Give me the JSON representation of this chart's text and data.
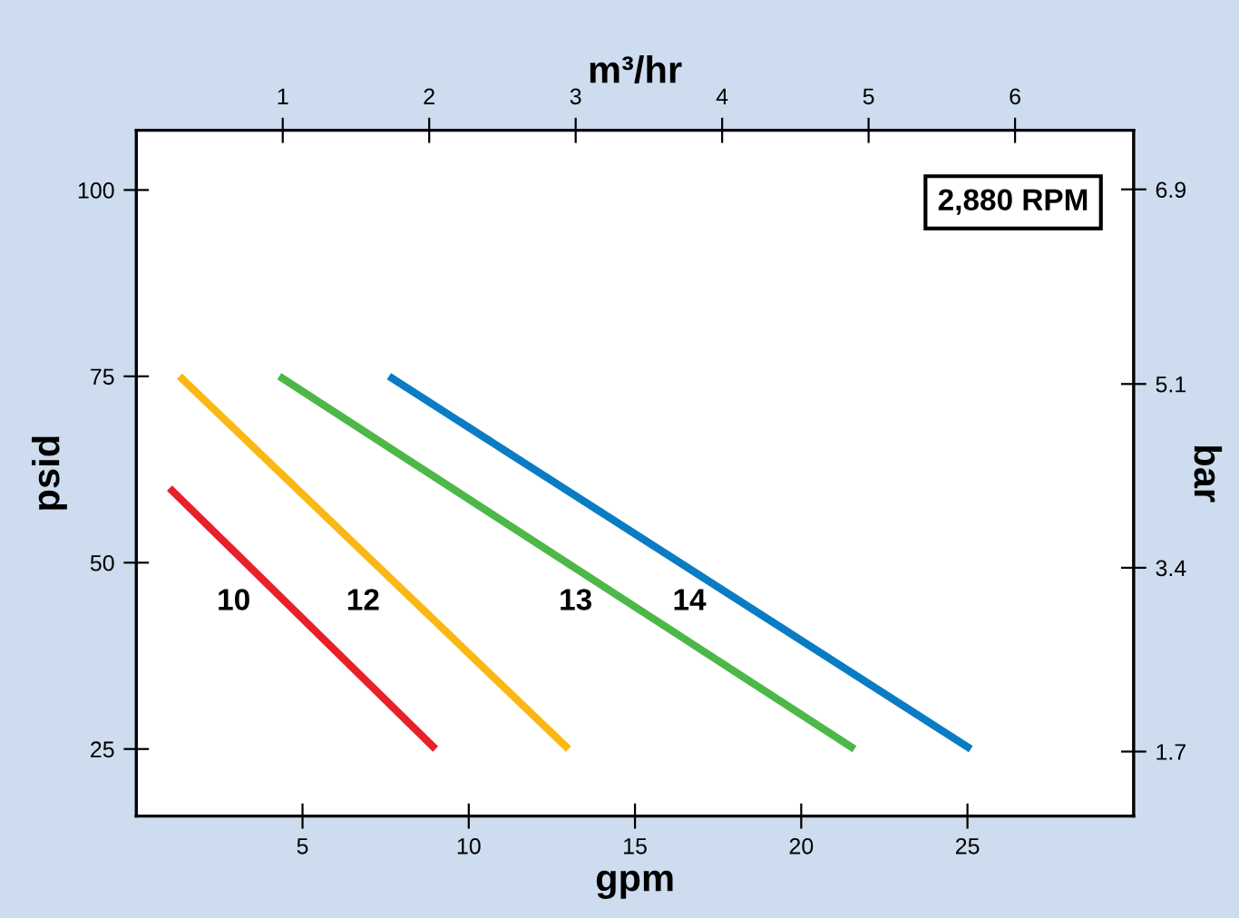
{
  "chart_data": {
    "type": "line",
    "xlabel": "gpm",
    "ylabel": "psid",
    "x2label": "m³/hr",
    "y2label": "bar",
    "xlim": [
      0,
      30
    ],
    "xticks": [
      5,
      10,
      15,
      20,
      25
    ],
    "ylim": [
      16,
      108
    ],
    "yticks": [
      25,
      50,
      75,
      100
    ],
    "x2lim": [
      0,
      6.81
    ],
    "x2ticks": [
      1,
      2,
      3,
      4,
      5,
      6
    ],
    "y2lim": [
      1.103,
      7.446
    ],
    "y2ticks": [
      1.7,
      3.4,
      5.1,
      6.9
    ],
    "grid": false,
    "marker": "none",
    "line_style": "solid",
    "series": [
      {
        "name": "10",
        "color": "#e8202a",
        "x": [
          1,
          9
        ],
        "values": [
          60,
          25
        ]
      },
      {
        "name": "12",
        "color": "#fbb714",
        "x": [
          1.3,
          13
        ],
        "values": [
          75,
          25
        ]
      },
      {
        "name": "13",
        "color": "#4db848",
        "x": [
          4.3,
          21.6
        ],
        "values": [
          75,
          25
        ]
      },
      {
        "name": "14",
        "color": "#0a7cc4",
        "x": [
          7.6,
          25.1
        ],
        "values": [
          75,
          25
        ]
      }
    ],
    "annotations": [
      "2,880 RPM"
    ]
  }
}
